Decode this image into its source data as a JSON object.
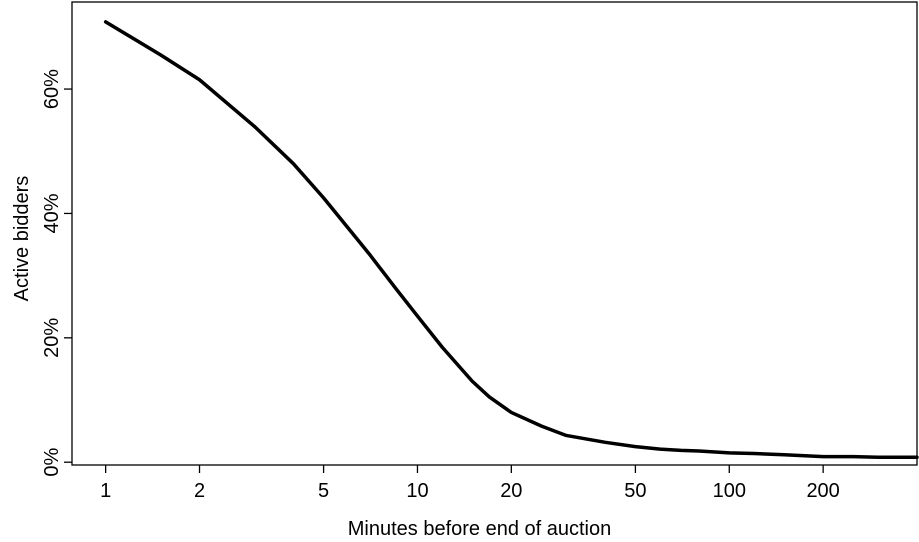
{
  "chart_data": {
    "type": "line",
    "title": "",
    "xlabel": "Minutes before end of auction",
    "ylabel": "Active bidders",
    "x_scale": "log",
    "xlim": [
      0.78,
      400
    ],
    "ylim": [
      -0.0045,
      0.74
    ],
    "grid": false,
    "x_ticks": [
      {
        "value": 1,
        "label": "1"
      },
      {
        "value": 2,
        "label": "2"
      },
      {
        "value": 5,
        "label": "5"
      },
      {
        "value": 10,
        "label": "10"
      },
      {
        "value": 20,
        "label": "20"
      },
      {
        "value": 50,
        "label": "50"
      },
      {
        "value": 100,
        "label": "100"
      },
      {
        "value": 200,
        "label": "200"
      }
    ],
    "y_ticks": [
      {
        "value": 0,
        "label": "0%"
      },
      {
        "value": 0.2,
        "label": "20%"
      },
      {
        "value": 0.4,
        "label": "40%"
      },
      {
        "value": 0.6,
        "label": "60%"
      }
    ],
    "series": [
      {
        "color": "#000000",
        "x": [
          1,
          1.5,
          2,
          3,
          4,
          5,
          7,
          8.5,
          10,
          12,
          15,
          17,
          20,
          25,
          30,
          40,
          50,
          60,
          70,
          80,
          100,
          120,
          150,
          200,
          250,
          300,
          400
        ],
        "y": [
          0.708,
          0.655,
          0.615,
          0.54,
          0.48,
          0.425,
          0.335,
          0.28,
          0.235,
          0.185,
          0.13,
          0.105,
          0.08,
          0.058,
          0.043,
          0.032,
          0.025,
          0.021,
          0.019,
          0.018,
          0.015,
          0.014,
          0.012,
          0.009,
          0.009,
          0.008,
          0.008
        ]
      }
    ]
  }
}
